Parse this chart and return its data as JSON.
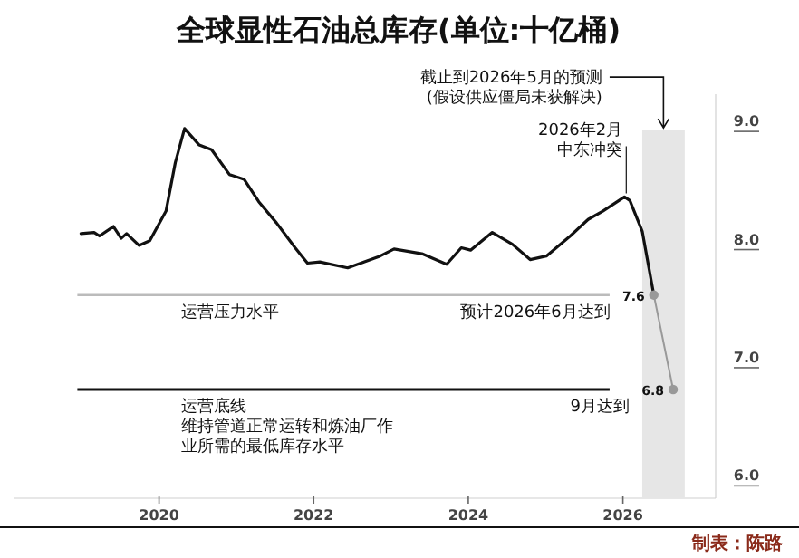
{
  "chart_data": {
    "type": "line",
    "title": "全球显性石油总库存(单位:十亿桶)",
    "xlim": [
      2018.13,
      2027.2
    ],
    "ylim": [
      5.88,
      9.3
    ],
    "xticks": [
      2020,
      2022,
      2024,
      2026
    ],
    "yticks": [
      {
        "value": 6,
        "label": "6.0"
      },
      {
        "value": 7,
        "label": "7.0"
      },
      {
        "value": 8,
        "label": "8.0"
      },
      {
        "value": 9,
        "label": "9.0"
      }
    ],
    "series": [
      {
        "color": "#111111",
        "marker": "none",
        "line_style": "solid",
        "x": [
          2018.99,
          2019.16,
          2019.23,
          2019.41,
          2019.51,
          2019.58,
          2019.74,
          2019.88,
          2020.09,
          2020.21,
          2020.33,
          2020.52,
          2020.68,
          2020.91,
          2021.1,
          2021.29,
          2021.52,
          2021.76,
          2021.92,
          2022.08,
          2022.44,
          2022.69,
          2022.86,
          2023.04,
          2023.4,
          2023.72,
          2023.91,
          2024.03,
          2024.31,
          2024.57,
          2024.8,
          2025.01,
          2025.32,
          2025.55,
          2025.74,
          2026.02,
          2026.09,
          2026.25,
          2026.4
        ],
        "values": [
          8.12,
          8.13,
          8.1,
          8.18,
          8.08,
          8.12,
          8.02,
          8.06,
          8.31,
          8.72,
          9.01,
          8.87,
          8.83,
          8.62,
          8.58,
          8.39,
          8.21,
          8.0,
          7.87,
          7.88,
          7.83,
          7.89,
          7.93,
          7.99,
          7.95,
          7.86,
          8.0,
          7.98,
          8.13,
          8.03,
          7.9,
          7.93,
          8.1,
          8.24,
          8.31,
          8.43,
          8.4,
          8.14,
          7.6
        ]
      },
      {
        "color": "#999999",
        "marker": "circle",
        "line_style": "solid",
        "x": [
          2026.4,
          2026.65
        ],
        "values": [
          7.6,
          6.8
        ],
        "value_labels": [
          "7.6",
          "6.8"
        ]
      }
    ],
    "ref_lines": [
      {
        "axis": "y",
        "value": 7.6,
        "label": "运营压力水平",
        "color": "#bbbbbb"
      },
      {
        "axis": "y",
        "value": 6.8,
        "label": "运营底线",
        "color": "#111111"
      }
    ],
    "bands": [
      {
        "axis": "x",
        "from": 2026.25,
        "to": 2026.8,
        "label": "截止到2026年5月的预测(假设供应僵局未获解决)",
        "color": "#e6e6e6"
      }
    ],
    "annotations": [
      {
        "text": "2026年2月中东冲突",
        "x": 2026.02,
        "y": 8.43
      },
      {
        "text": "预计2026年6月达到",
        "x": 2026.4,
        "y": 7.6
      },
      {
        "text": "9月达到",
        "x": 2026.65,
        "y": 6.8
      },
      "维持管道正常运转和炼油厂作业所需的最低库存水平",
      "制表：陈路"
    ]
  }
}
